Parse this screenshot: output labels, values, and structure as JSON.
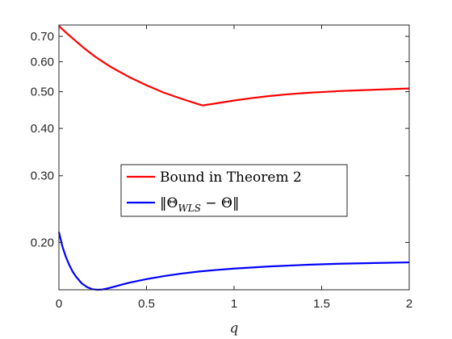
{
  "chart_data": {
    "type": "line",
    "title": "",
    "xlabel": "q",
    "ylabel": "",
    "xlim": [
      0,
      2
    ],
    "ylim": [
      0.15,
      0.75
    ],
    "yscale": "log",
    "grid": false,
    "legend_position": "center",
    "x_ticks": [
      0,
      0.5,
      1,
      1.5,
      2
    ],
    "x_tick_labels": [
      "0",
      "0.5",
      "1",
      "1.5",
      "2"
    ],
    "y_ticks": [
      0.2,
      0.3,
      0.4,
      0.5,
      0.6,
      0.7
    ],
    "y_tick_labels": [
      "0.20",
      "0.30",
      "0.40",
      "0.50",
      "0.60",
      "0.70"
    ],
    "series": [
      {
        "name": "Bound in Theorem 2",
        "color": "#ff0000",
        "x": [
          0,
          0.05,
          0.1,
          0.15,
          0.2,
          0.25,
          0.3,
          0.4,
          0.5,
          0.6,
          0.7,
          0.8,
          0.82,
          0.9,
          1.0,
          1.1,
          1.2,
          1.3,
          1.4,
          1.5,
          1.6,
          1.7,
          1.8,
          1.9,
          2.0
        ],
        "y": [
          0.745,
          0.71,
          0.678,
          0.648,
          0.622,
          0.6,
          0.58,
          0.547,
          0.52,
          0.497,
          0.479,
          0.463,
          0.46,
          0.466,
          0.474,
          0.481,
          0.487,
          0.492,
          0.496,
          0.499,
          0.502,
          0.504,
          0.506,
          0.508,
          0.51
        ]
      },
      {
        "name": "‖Θ_WLS − Θ‖",
        "legend_parts": [
          "‖Θ",
          "WLS",
          " − Θ‖"
        ],
        "color": "#0000ff",
        "x": [
          0,
          0.02,
          0.04,
          0.06,
          0.08,
          0.1,
          0.13,
          0.16,
          0.19,
          0.22,
          0.25,
          0.28,
          0.32,
          0.36,
          0.4,
          0.5,
          0.6,
          0.7,
          0.8,
          0.9,
          1.0,
          1.2,
          1.4,
          1.6,
          1.8,
          2.0
        ],
        "y": [
          0.213,
          0.195,
          0.183,
          0.174,
          0.167,
          0.162,
          0.156,
          0.1525,
          0.1505,
          0.15,
          0.1503,
          0.1513,
          0.153,
          0.1548,
          0.1565,
          0.16,
          0.163,
          0.1655,
          0.1676,
          0.1692,
          0.1706,
          0.1728,
          0.1745,
          0.1757,
          0.1765,
          0.1772
        ]
      }
    ]
  }
}
